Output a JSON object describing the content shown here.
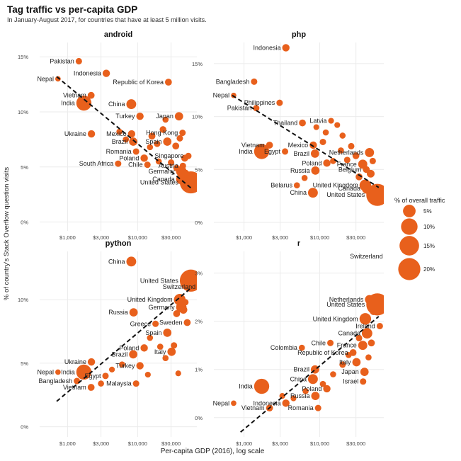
{
  "title": "Tag traffic vs per-capita GDP",
  "subtitle": "In January-August 2017, for countries that have at least 5 million visits.",
  "xlabel": "Per-capita GDP (2016), log scale",
  "ylabel": "% of country's Stack Overflow question visits",
  "colors": {
    "point": "#e8601c",
    "trend": "#111111",
    "grid": "#ebebeb"
  },
  "legend": {
    "title": "% of overall traffic",
    "placement": "right",
    "entries": [
      {
        "label": "5%",
        "value": 5
      },
      {
        "label": "10%",
        "value": 10
      },
      {
        "label": "15%",
        "value": 15
      },
      {
        "label": "20%",
        "value": 20
      }
    ]
  },
  "chart_data": [
    {
      "type": "scatter",
      "facet": "android",
      "xscale": "log",
      "xlim": [
        400,
        70000
      ],
      "ylim": [
        -0.8,
        16.3
      ],
      "xticks": [
        {
          "v": 1000,
          "label": "$1,000"
        },
        {
          "v": 3000,
          "label": "$3,000"
        },
        {
          "v": 10000,
          "label": "$10,000"
        },
        {
          "v": 30000,
          "label": "$30,000"
        }
      ],
      "yticks": [
        {
          "v": 0,
          "label": "0%"
        },
        {
          "v": 5,
          "label": "5%"
        },
        {
          "v": 10,
          "label": "10%"
        },
        {
          "v": 15,
          "label": "15%"
        }
      ],
      "trend": [
        [
          700,
          13.2
        ],
        [
          60000,
          3.0
        ]
      ],
      "points": [
        {
          "label": "Pakistan",
          "x": 1450,
          "y": 14.6,
          "size": 0.6
        },
        {
          "label": "Nepal",
          "x": 730,
          "y": 13.0,
          "size": 0.3
        },
        {
          "label": "Indonesia",
          "x": 3570,
          "y": 13.5,
          "size": 1.0
        },
        {
          "label": "Republic of Korea",
          "x": 27500,
          "y": 12.7,
          "size": 0.8
        },
        {
          "label": "Vietnam",
          "x": 2170,
          "y": 11.5,
          "size": 0.8
        },
        {
          "label": "India",
          "x": 1710,
          "y": 10.8,
          "size": 8.0
        },
        {
          "label": "China",
          "x": 8120,
          "y": 10.7,
          "size": 2.5
        },
        {
          "label": "Turkey",
          "x": 10800,
          "y": 9.6,
          "size": 1.0
        },
        {
          "label": "Japan",
          "x": 38900,
          "y": 9.6,
          "size": 1.5
        },
        {
          "label": "Hong Kong",
          "x": 43700,
          "y": 8.1,
          "size": 0.6
        },
        {
          "label": "Ukraine",
          "x": 2190,
          "y": 8.0,
          "size": 1.0
        },
        {
          "label": "Mexico",
          "x": 8200,
          "y": 8.0,
          "size": 1.0
        },
        {
          "label": "Brazil",
          "x": 8650,
          "y": 7.3,
          "size": 1.5
        },
        {
          "label": "Spain",
          "x": 26500,
          "y": 7.3,
          "size": 1.5
        },
        {
          "label": "Romania",
          "x": 9500,
          "y": 6.4,
          "size": 0.6
        },
        {
          "label": "Poland",
          "x": 12400,
          "y": 5.8,
          "size": 1.0
        },
        {
          "label": "Singapore",
          "x": 52900,
          "y": 6.0,
          "size": 0.6
        },
        {
          "label": "South Africa",
          "x": 5270,
          "y": 5.3,
          "size": 0.6
        },
        {
          "label": "Chile",
          "x": 13800,
          "y": 5.2,
          "size": 0.6
        },
        {
          "label": "Austria",
          "x": 44200,
          "y": 5.1,
          "size": 0.6
        },
        {
          "label": "Germany",
          "x": 42000,
          "y": 4.6,
          "size": 3.0
        },
        {
          "label": "Canada",
          "x": 42100,
          "y": 3.9,
          "size": 3.0
        },
        {
          "label": "United States",
          "x": 57500,
          "y": 3.6,
          "size": 20.0
        },
        {
          "x": 5500,
          "y": 8.2,
          "size": 0.5
        },
        {
          "x": 6800,
          "y": 7.5,
          "size": 0.5
        },
        {
          "x": 16000,
          "y": 7.8,
          "size": 0.8
        },
        {
          "x": 19000,
          "y": 7.1,
          "size": 0.6
        },
        {
          "x": 23000,
          "y": 8.4,
          "size": 0.7
        },
        {
          "x": 35000,
          "y": 6.9,
          "size": 0.8
        },
        {
          "x": 40000,
          "y": 7.6,
          "size": 0.6
        },
        {
          "x": 47000,
          "y": 5.8,
          "size": 0.8
        },
        {
          "x": 30000,
          "y": 5.4,
          "size": 0.6
        },
        {
          "x": 20000,
          "y": 5.5,
          "size": 0.5
        },
        {
          "x": 15000,
          "y": 6.8,
          "size": 0.5
        },
        {
          "x": 36000,
          "y": 4.9,
          "size": 0.7
        },
        {
          "x": 48000,
          "y": 4.4,
          "size": 1.2
        },
        {
          "x": 25000,
          "y": 9.3,
          "size": 0.5
        }
      ]
    },
    {
      "type": "scatter",
      "facet": "php",
      "xscale": "log",
      "xlim": [
        400,
        70000
      ],
      "ylim": [
        -0.8,
        17.0
      ],
      "xticks": [
        {
          "v": 1000,
          "label": "$1,000"
        },
        {
          "v": 3000,
          "label": "$3,000"
        },
        {
          "v": 10000,
          "label": "$10,000"
        },
        {
          "v": 30000,
          "label": "$30,000"
        }
      ],
      "yticks": [
        {
          "v": 0,
          "label": "0%"
        },
        {
          "v": 5,
          "label": "5%"
        },
        {
          "v": 10,
          "label": "10%"
        },
        {
          "v": 15,
          "label": "15%"
        }
      ],
      "trend": [
        [
          700,
          12.0
        ],
        [
          60000,
          3.3
        ]
      ],
      "points": [
        {
          "label": "Indonesia",
          "x": 3570,
          "y": 16.5,
          "size": 1.0
        },
        {
          "label": "Bangladesh",
          "x": 1360,
          "y": 13.3,
          "size": 0.6
        },
        {
          "label": "Nepal",
          "x": 730,
          "y": 12.0,
          "size": 0.3
        },
        {
          "label": "Philippines",
          "x": 2950,
          "y": 11.3,
          "size": 0.6
        },
        {
          "label": "Pakistan",
          "x": 1450,
          "y": 10.8,
          "size": 0.6
        },
        {
          "label": "Thailand",
          "x": 5900,
          "y": 9.4,
          "size": 0.8
        },
        {
          "label": "Latvia",
          "x": 14100,
          "y": 9.6,
          "size": 0.4
        },
        {
          "label": "Vietnam",
          "x": 2170,
          "y": 7.3,
          "size": 0.8
        },
        {
          "label": "India",
          "x": 1710,
          "y": 6.7,
          "size": 8.0
        },
        {
          "label": "Egypt",
          "x": 3480,
          "y": 6.7,
          "size": 0.6
        },
        {
          "label": "Mexico",
          "x": 8200,
          "y": 7.3,
          "size": 1.0
        },
        {
          "label": "Netherlands",
          "x": 45300,
          "y": 6.6,
          "size": 2.0
        },
        {
          "label": "Brazil",
          "x": 8650,
          "y": 6.5,
          "size": 1.5
        },
        {
          "label": "France",
          "x": 36900,
          "y": 5.5,
          "size": 2.0
        },
        {
          "label": "Poland",
          "x": 12400,
          "y": 5.6,
          "size": 1.0
        },
        {
          "label": "Belgium",
          "x": 41100,
          "y": 5.0,
          "size": 0.8
        },
        {
          "label": "Russia",
          "x": 8750,
          "y": 4.9,
          "size": 1.5
        },
        {
          "label": "United Kingdom",
          "x": 39900,
          "y": 3.5,
          "size": 4.0
        },
        {
          "label": "Belarus",
          "x": 4990,
          "y": 3.5,
          "size": 0.5
        },
        {
          "label": "Canada",
          "x": 42100,
          "y": 3.2,
          "size": 3.0
        },
        {
          "label": "China",
          "x": 8120,
          "y": 2.8,
          "size": 2.5
        },
        {
          "label": "United States",
          "x": 57500,
          "y": 2.6,
          "size": 20.0
        },
        {
          "x": 12000,
          "y": 8.5,
          "size": 0.5
        },
        {
          "x": 17000,
          "y": 9.2,
          "size": 0.4
        },
        {
          "x": 20000,
          "y": 8.2,
          "size": 0.5
        },
        {
          "x": 26000,
          "y": 7.2,
          "size": 0.6
        },
        {
          "x": 30000,
          "y": 6.3,
          "size": 0.8
        },
        {
          "x": 19000,
          "y": 6.8,
          "size": 0.5
        },
        {
          "x": 23000,
          "y": 5.9,
          "size": 0.6
        },
        {
          "x": 15000,
          "y": 5.8,
          "size": 0.5
        },
        {
          "x": 47000,
          "y": 4.6,
          "size": 1.2
        },
        {
          "x": 33000,
          "y": 4.3,
          "size": 0.8
        },
        {
          "x": 50000,
          "y": 5.8,
          "size": 0.6
        },
        {
          "x": 6300,
          "y": 4.2,
          "size": 0.5
        },
        {
          "x": 11000,
          "y": 7.6,
          "size": 0.6
        },
        {
          "x": 9000,
          "y": 9.0,
          "size": 0.4
        }
      ]
    },
    {
      "type": "scatter",
      "facet": "python",
      "xscale": "log",
      "xlim": [
        400,
        70000
      ],
      "ylim": [
        -0.8,
        13.8
      ],
      "xticks": [
        {
          "v": 1000,
          "label": "$1,000"
        },
        {
          "v": 3000,
          "label": "$3,000"
        },
        {
          "v": 10000,
          "label": "$10,000"
        },
        {
          "v": 30000,
          "label": "$30,000"
        }
      ],
      "yticks": [
        {
          "v": 0,
          "label": "0%"
        },
        {
          "v": 5,
          "label": "5%"
        },
        {
          "v": 10,
          "label": "10%"
        }
      ],
      "trend": [
        [
          700,
          2.0
        ],
        [
          60000,
          11.0
        ]
      ],
      "points": [
        {
          "label": "China",
          "x": 8120,
          "y": 13.0,
          "size": 2.5
        },
        {
          "label": "United States",
          "x": 57500,
          "y": 11.5,
          "size": 20.0
        },
        {
          "label": "Switzerland",
          "x": 78800,
          "y": 11.0,
          "size": 0.8
        },
        {
          "label": "United Kingdom",
          "x": 39900,
          "y": 10.0,
          "size": 4.0
        },
        {
          "label": "Germany",
          "x": 42000,
          "y": 9.4,
          "size": 3.0
        },
        {
          "label": "Russia",
          "x": 8750,
          "y": 9.0,
          "size": 1.5
        },
        {
          "label": "Greece",
          "x": 18000,
          "y": 8.1,
          "size": 0.6
        },
        {
          "label": "Sweden",
          "x": 51000,
          "y": 8.2,
          "size": 0.8
        },
        {
          "label": "Spain",
          "x": 26500,
          "y": 7.4,
          "size": 1.5
        },
        {
          "label": "Poland",
          "x": 12400,
          "y": 6.2,
          "size": 1.0
        },
        {
          "label": "Brazil",
          "x": 8650,
          "y": 5.7,
          "size": 1.5
        },
        {
          "label": "Italy",
          "x": 30500,
          "y": 5.9,
          "size": 1.5
        },
        {
          "label": "Ukraine",
          "x": 2190,
          "y": 5.1,
          "size": 1.0
        },
        {
          "label": "Nepal",
          "x": 730,
          "y": 4.3,
          "size": 0.3
        },
        {
          "label": "India",
          "x": 1710,
          "y": 4.3,
          "size": 8.0
        },
        {
          "label": "Egypt",
          "x": 3480,
          "y": 4.0,
          "size": 0.6
        },
        {
          "label": "Turkey",
          "x": 10800,
          "y": 4.8,
          "size": 1.0
        },
        {
          "label": "Bangladesh",
          "x": 1360,
          "y": 3.6,
          "size": 0.6
        },
        {
          "label": "Malaysia",
          "x": 9500,
          "y": 3.4,
          "size": 0.6
        },
        {
          "label": "Vietnam",
          "x": 2170,
          "y": 3.1,
          "size": 0.8
        },
        {
          "x": 3000,
          "y": 3.4,
          "size": 0.5
        },
        {
          "x": 4300,
          "y": 4.5,
          "size": 0.4
        },
        {
          "x": 6000,
          "y": 4.9,
          "size": 0.5
        },
        {
          "x": 14000,
          "y": 4.1,
          "size": 0.4
        },
        {
          "x": 21000,
          "y": 6.3,
          "size": 0.5
        },
        {
          "x": 25000,
          "y": 5.4,
          "size": 0.5
        },
        {
          "x": 33000,
          "y": 6.4,
          "size": 0.6
        },
        {
          "x": 36000,
          "y": 8.9,
          "size": 0.8
        },
        {
          "x": 45000,
          "y": 9.2,
          "size": 1.2
        },
        {
          "x": 48000,
          "y": 9.8,
          "size": 0.6
        },
        {
          "x": 15000,
          "y": 7.0,
          "size": 0.5
        },
        {
          "x": 38000,
          "y": 4.2,
          "size": 0.4
        }
      ]
    },
    {
      "type": "scatter",
      "facet": "r",
      "xscale": "log",
      "xlim": [
        400,
        70000
      ],
      "ylim": [
        -0.4,
        3.45
      ],
      "xticks": [
        {
          "v": 1000,
          "label": "$1,000"
        },
        {
          "v": 3000,
          "label": "$3,000"
        },
        {
          "v": 10000,
          "label": "$10,000"
        },
        {
          "v": 30000,
          "label": "$30,000"
        }
      ],
      "yticks": [
        {
          "v": 0,
          "label": "0%"
        },
        {
          "v": 1,
          "label": "1%"
        },
        {
          "v": 2,
          "label": "2%"
        },
        {
          "v": 3,
          "label": "3%"
        }
      ],
      "trend": [
        [
          900,
          -0.3
        ],
        [
          60000,
          2.1
        ]
      ],
      "points": [
        {
          "label": "Switzerland",
          "x": 78800,
          "y": 3.35,
          "size": 0.8
        },
        {
          "label": "Netherlands",
          "x": 45300,
          "y": 2.45,
          "size": 2.0
        },
        {
          "label": "United States",
          "x": 57500,
          "y": 2.35,
          "size": 20.0
        },
        {
          "label": "United Kingdom",
          "x": 39900,
          "y": 2.05,
          "size": 4.0
        },
        {
          "label": "Ireland",
          "x": 62000,
          "y": 1.9,
          "size": 0.6
        },
        {
          "label": "Canada",
          "x": 42100,
          "y": 1.75,
          "size": 3.0
        },
        {
          "label": "Chile",
          "x": 13800,
          "y": 1.55,
          "size": 0.6
        },
        {
          "label": "France",
          "x": 36900,
          "y": 1.5,
          "size": 2.0
        },
        {
          "label": "Colombia",
          "x": 5800,
          "y": 1.45,
          "size": 0.5
        },
        {
          "label": "Republic of Korea",
          "x": 27500,
          "y": 1.35,
          "size": 0.8
        },
        {
          "label": "Italy",
          "x": 30500,
          "y": 1.15,
          "size": 1.5
        },
        {
          "label": "Brazil",
          "x": 8650,
          "y": 1.0,
          "size": 1.5
        },
        {
          "label": "Japan",
          "x": 38900,
          "y": 0.95,
          "size": 1.5
        },
        {
          "label": "China",
          "x": 8120,
          "y": 0.8,
          "size": 2.5
        },
        {
          "label": "Israel",
          "x": 37300,
          "y": 0.75,
          "size": 0.6
        },
        {
          "label": "India",
          "x": 1710,
          "y": 0.65,
          "size": 8.0
        },
        {
          "label": "Poland",
          "x": 12400,
          "y": 0.6,
          "size": 1.0
        },
        {
          "label": "Russia",
          "x": 8750,
          "y": 0.45,
          "size": 1.5
        },
        {
          "label": "Nepal",
          "x": 730,
          "y": 0.3,
          "size": 0.3
        },
        {
          "label": "Indonesia",
          "x": 3570,
          "y": 0.3,
          "size": 1.0
        },
        {
          "label": "Vietnam",
          "x": 2170,
          "y": 0.2,
          "size": 0.8
        },
        {
          "label": "Romania",
          "x": 9500,
          "y": 0.2,
          "size": 0.6
        },
        {
          "x": 3200,
          "y": 0.45,
          "size": 0.4
        },
        {
          "x": 4500,
          "y": 0.4,
          "size": 0.4
        },
        {
          "x": 6500,
          "y": 0.55,
          "size": 0.5
        },
        {
          "x": 11000,
          "y": 0.7,
          "size": 0.5
        },
        {
          "x": 15000,
          "y": 0.9,
          "size": 0.5
        },
        {
          "x": 20000,
          "y": 1.1,
          "size": 0.6
        },
        {
          "x": 24000,
          "y": 1.3,
          "size": 0.5
        },
        {
          "x": 33000,
          "y": 1.65,
          "size": 0.6
        },
        {
          "x": 48000,
          "y": 1.55,
          "size": 0.8
        },
        {
          "x": 51000,
          "y": 2.2,
          "size": 0.8
        },
        {
          "x": 44000,
          "y": 1.25,
          "size": 0.5
        }
      ]
    }
  ]
}
